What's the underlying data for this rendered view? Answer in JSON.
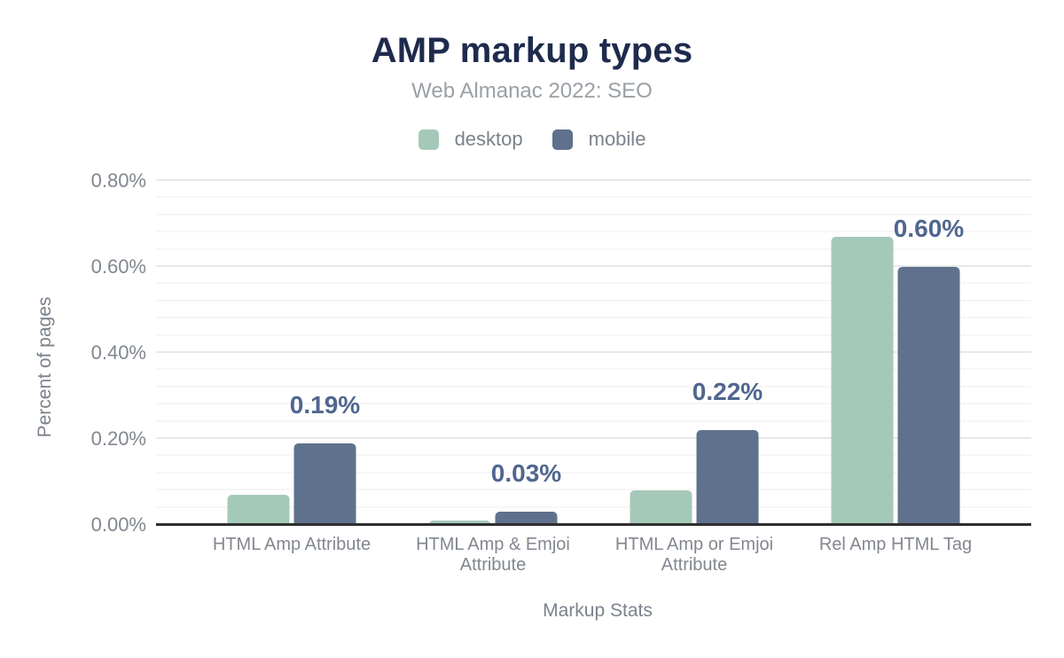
{
  "figure": {
    "title": "AMP markup types",
    "subtitle": "Web Almanac 2022: SEO"
  },
  "chart_data": {
    "type": "bar",
    "title": "AMP markup types",
    "subtitle": "Web Almanac 2022: SEO",
    "xlabel": "Markup Stats",
    "ylabel": "Percent of pages",
    "categories": [
      "HTML Amp Attribute",
      "HTML Amp & Emjoi Attribute",
      "HTML Amp or Emjoi Attribute",
      "Rel Amp HTML Tag"
    ],
    "series": [
      {
        "name": "desktop",
        "color": "#a5c9b8",
        "values": [
          0.07,
          0.01,
          0.08,
          0.67
        ]
      },
      {
        "name": "mobile",
        "color": "#5f718c",
        "values": [
          0.19,
          0.03,
          0.22,
          0.6
        ]
      }
    ],
    "bar_labels": {
      "series": "mobile",
      "values": [
        "0.19%",
        "0.03%",
        "0.22%",
        "0.60%"
      ],
      "color": "#50668f"
    },
    "ylim": [
      0,
      0.8
    ],
    "y_ticks": [
      {
        "value": 0.0,
        "label": "0.00%"
      },
      {
        "value": 0.2,
        "label": "0.20%"
      },
      {
        "value": 0.4,
        "label": "0.40%"
      },
      {
        "value": 0.6,
        "label": "0.60%"
      },
      {
        "value": 0.8,
        "label": "0.80%"
      }
    ],
    "y_minor_step": 0.04,
    "y_major_step": 0.2,
    "grid": true,
    "legend_position": "top"
  },
  "colors": {
    "title": "#1e2b4d",
    "subtitle": "#9aa0a6",
    "axis_text": "#82878f",
    "axis_title": "#7b828c",
    "baseline": "#2e2e2e",
    "grid_major": "#e8e8e8",
    "grid_minor": "#f6f6f6",
    "background": "#ffffff"
  }
}
